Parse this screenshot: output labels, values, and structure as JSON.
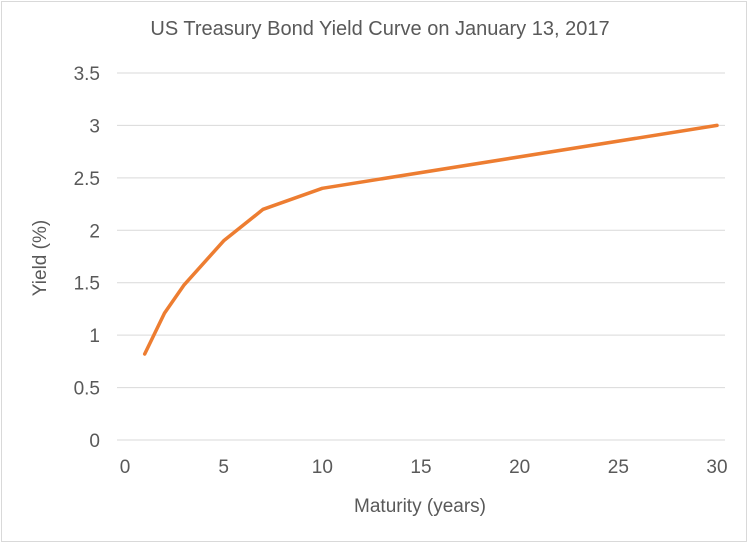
{
  "chart_data": {
    "type": "line",
    "title": "US Treasury Bond Yield Curve on January 13, 2017",
    "xlabel": "Maturity (years)",
    "ylabel": "Yield (%)",
    "xlim": [
      0,
      30
    ],
    "ylim": [
      0,
      3.5
    ],
    "x_ticks": [
      0,
      5,
      10,
      15,
      20,
      25,
      30
    ],
    "y_ticks": [
      0,
      0.5,
      1,
      1.5,
      2,
      2.5,
      3,
      3.5
    ],
    "x_tick_labels": [
      "0",
      "5",
      "10",
      "15",
      "20",
      "25",
      "30"
    ],
    "y_tick_labels": [
      "0",
      "0.5",
      "1",
      "1.5",
      "2",
      "2.5",
      "3",
      "3.5"
    ],
    "grid": true,
    "legend": "none",
    "series": [
      {
        "x": [
          1,
          2,
          3,
          5,
          7,
          10,
          30
        ],
        "values": [
          0.82,
          1.21,
          1.48,
          1.9,
          2.2,
          2.4,
          3.0
        ],
        "color": "#ED7D31"
      }
    ]
  }
}
